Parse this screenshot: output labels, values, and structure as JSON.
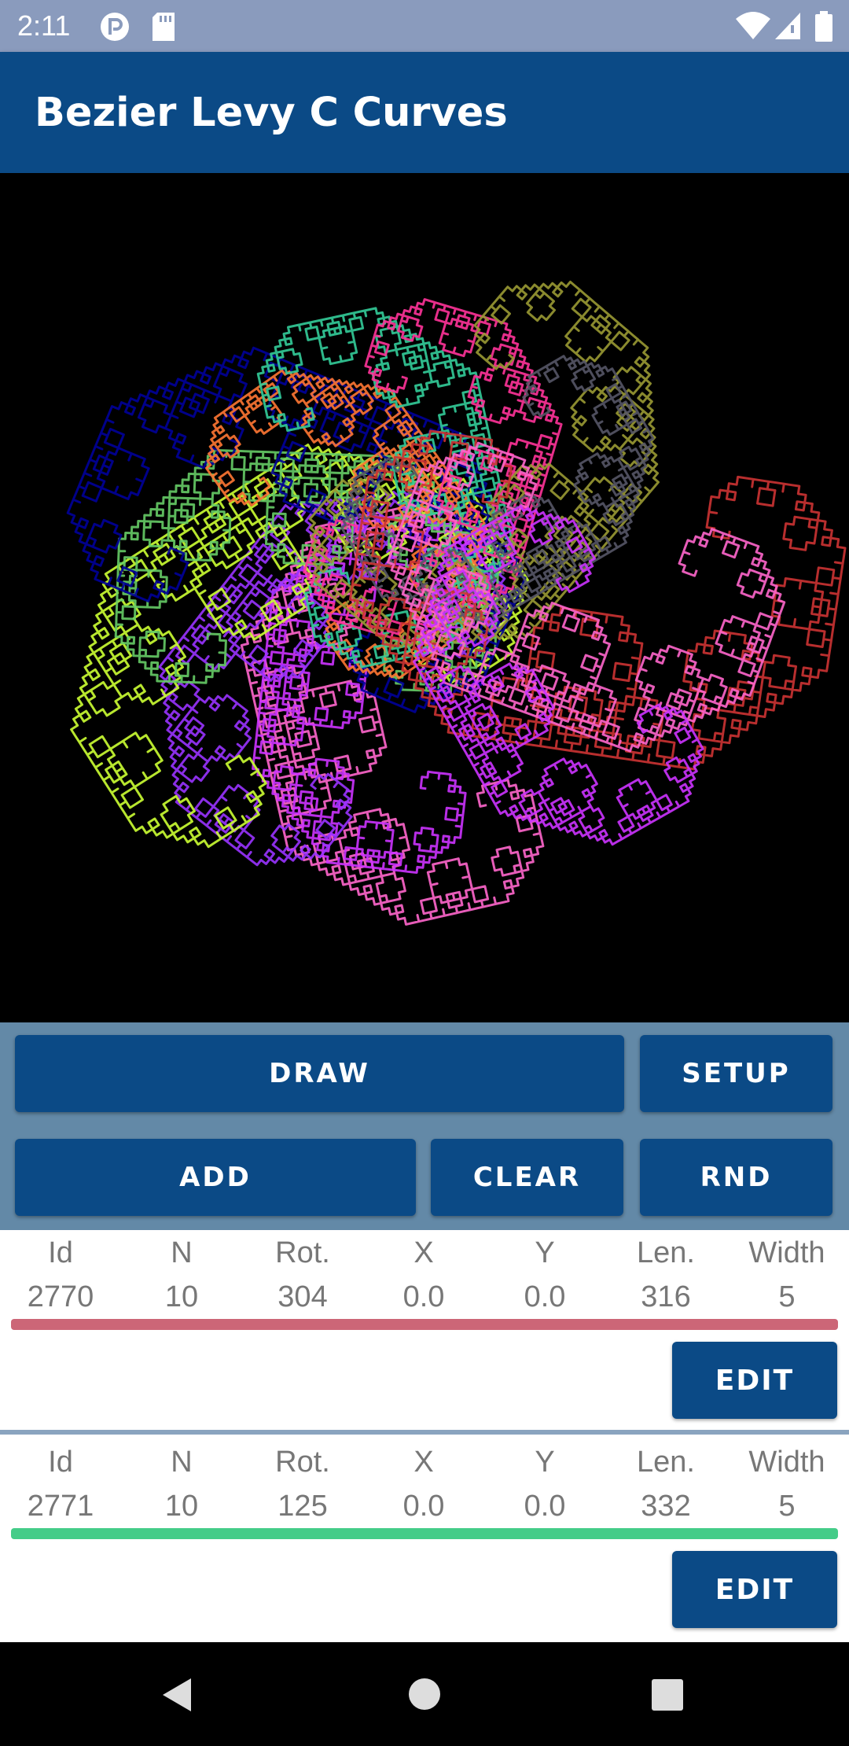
{
  "status_bar": {
    "time": "2:11",
    "icons": [
      "app-notification-icon",
      "sd-card-icon",
      "wifi-icon",
      "signal-icon",
      "battery-icon"
    ]
  },
  "app_bar": {
    "title": "Bezier Levy C Curves",
    "color": "#0b4a86"
  },
  "canvas": {
    "background": "#000000",
    "curve_colors": [
      "#ff66cc",
      "#cc33ff",
      "#9933ff",
      "#ccff33",
      "#66cc66",
      "#000099",
      "#ff7733",
      "#33cc99",
      "#ff3399",
      "#999933",
      "#555566",
      "#cc3333"
    ]
  },
  "controls": {
    "draw_label": "DRAW",
    "setup_label": "SETUP",
    "add_label": "ADD",
    "clear_label": "CLEAR",
    "rnd_label": "RND"
  },
  "list": {
    "headers": [
      "Id",
      "N",
      "Rot.",
      "X",
      "Y",
      "Len.",
      "Width"
    ],
    "items": [
      {
        "values": [
          "2770",
          "10",
          "304",
          "0.0",
          "0.0",
          "316",
          "5"
        ],
        "color": "#cc6677",
        "edit_label": "EDIT"
      },
      {
        "values": [
          "2771",
          "10",
          "125",
          "0.0",
          "0.0",
          "332",
          "5"
        ],
        "color": "#44cc88",
        "edit_label": "EDIT"
      }
    ]
  },
  "nav_bar": {
    "icons": [
      "back-icon",
      "home-icon",
      "recents-icon"
    ]
  }
}
